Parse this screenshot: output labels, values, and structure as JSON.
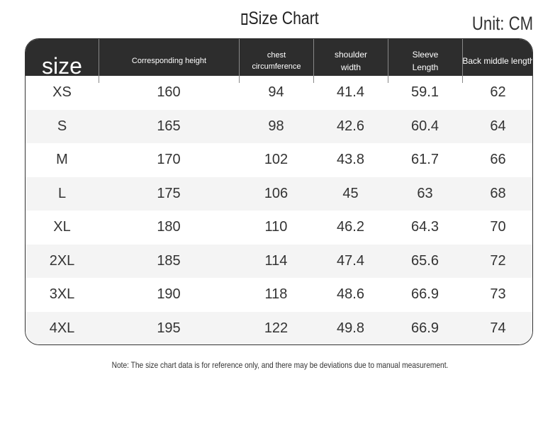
{
  "header": {
    "title": "Size Chart",
    "unit": "Unit: CM"
  },
  "table": {
    "columns": [
      "size",
      "Corresponding height",
      "chest circumference",
      "shoulder width",
      "Sleeve Length",
      "Back middle length"
    ],
    "rows": [
      [
        "XS",
        160,
        94,
        41.4,
        59.1,
        62
      ],
      [
        "S",
        165,
        98,
        42.6,
        60.4,
        64
      ],
      [
        "M",
        170,
        102,
        43.8,
        61.7,
        66
      ],
      [
        "L",
        175,
        106,
        45,
        63,
        68
      ],
      [
        "XL",
        180,
        110,
        46.2,
        64.3,
        70
      ],
      [
        "2XL",
        185,
        114,
        47.4,
        65.6,
        72
      ],
      [
        "3XL",
        190,
        118,
        48.6,
        66.9,
        73
      ],
      [
        "4XL",
        195,
        122,
        49.8,
        66.9,
        74
      ]
    ]
  },
  "footer": {
    "note": "Note: The size chart data is for reference only, and there may be deviations due to manual measurement."
  }
}
